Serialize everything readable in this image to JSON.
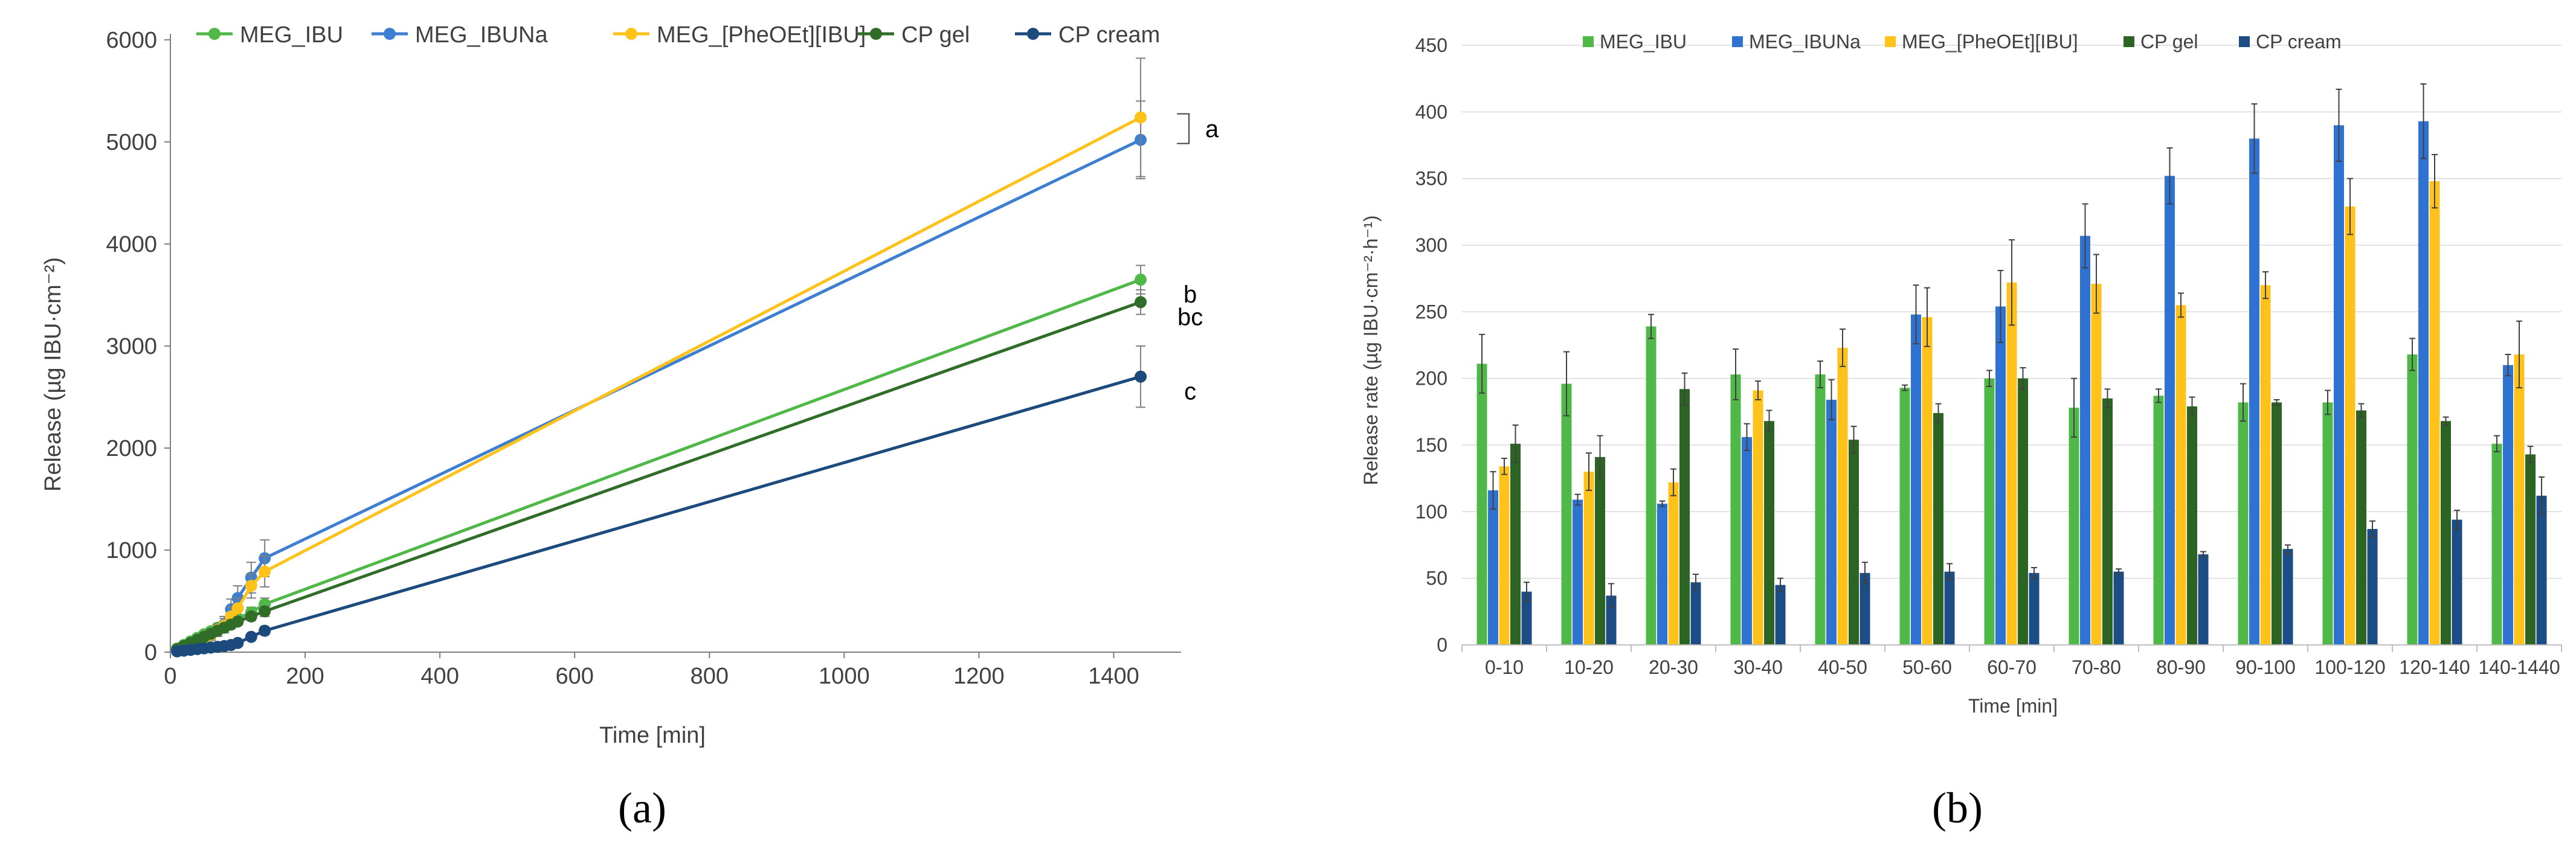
{
  "chart_data": [
    {
      "type": "line",
      "panel_label": "(a)",
      "xlabel": "Time [min]",
      "ylabel": "Release (µg IBU·cm⁻²)",
      "xlim": [
        0,
        1500
      ],
      "ylim": [
        0,
        6000
      ],
      "xticks": [
        "0",
        "200",
        "400",
        "600",
        "800",
        "1000",
        "1200",
        "1400"
      ],
      "yticks": [
        "0",
        "1000",
        "2000",
        "3000",
        "4000",
        "5000",
        "6000"
      ],
      "legend_position": "top",
      "x": [
        10,
        20,
        30,
        40,
        50,
        60,
        70,
        80,
        90,
        100,
        120,
        140,
        1440
      ],
      "series": [
        {
          "name": "MEG_IBU",
          "color": "#4fb848",
          "values": [
            35,
            70,
            105,
            140,
            175,
            205,
            240,
            270,
            300,
            330,
            390,
            470,
            3650
          ],
          "err": [
            10,
            15,
            20,
            25,
            30,
            30,
            35,
            35,
            40,
            40,
            50,
            60,
            140
          ]
        },
        {
          "name": "MEG_IBUNa",
          "color": "#3f7fd1",
          "values": [
            20,
            40,
            57,
            85,
            125,
            165,
            215,
            270,
            420,
            530,
            730,
            920,
            5020
          ],
          "err": [
            10,
            15,
            20,
            30,
            40,
            50,
            60,
            80,
            100,
            120,
            150,
            180,
            380
          ]
        },
        {
          "name": "MEG_[PheOEt][IBU]",
          "color": "#ffc21a",
          "values": [
            25,
            48,
            67,
            90,
            130,
            170,
            215,
            260,
            350,
            430,
            650,
            790,
            5240
          ],
          "err": [
            10,
            15,
            20,
            30,
            40,
            50,
            60,
            70,
            90,
            100,
            120,
            150,
            580
          ]
        },
        {
          "name": "CP gel",
          "color": "#2f6d29",
          "values": [
            30,
            60,
            90,
            120,
            150,
            180,
            210,
            240,
            270,
            300,
            350,
            400,
            3430
          ],
          "err": [
            10,
            15,
            20,
            20,
            25,
            25,
            30,
            30,
            35,
            35,
            40,
            50,
            120
          ]
        },
        {
          "name": "CP cream",
          "color": "#1c4a7c",
          "values": [
            8,
            15,
            22,
            30,
            38,
            45,
            52,
            60,
            70,
            90,
            150,
            210,
            2700
          ],
          "err": [
            5,
            5,
            8,
            10,
            10,
            12,
            15,
            15,
            20,
            20,
            30,
            40,
            300
          ]
        }
      ],
      "annotations": [
        {
          "text": "a",
          "series": [
            "MEG_IBUNa",
            "MEG_[PheOEt][IBU]"
          ]
        },
        {
          "text": "b",
          "series": [
            "MEG_IBU"
          ]
        },
        {
          "text": "bc",
          "series": [
            "CP gel"
          ]
        },
        {
          "text": "c",
          "series": [
            "CP cream"
          ]
        }
      ]
    },
    {
      "type": "bar",
      "panel_label": "(b)",
      "xlabel": "Time [min]",
      "ylabel": "Release rate (µg IBU·cm⁻²·h⁻¹)",
      "ylim": [
        0,
        450
      ],
      "yticks": [
        "0",
        "50",
        "100",
        "150",
        "200",
        "250",
        "300",
        "350",
        "400",
        "450"
      ],
      "legend_position": "top",
      "categories": [
        "0-10",
        "10-20",
        "20-30",
        "30-40",
        "40-50",
        "50-60",
        "60-70",
        "70-80",
        "80-90",
        "90-100",
        "100-120",
        "120-140",
        "140-1440"
      ],
      "series": [
        {
          "name": "MEG_IBU",
          "color": "#4fb848",
          "values": [
            211,
            196,
            239,
            203,
            203,
            193,
            200,
            178,
            187,
            182,
            182,
            218,
            151
          ],
          "err": [
            22,
            24,
            9,
            19,
            10,
            2,
            6,
            22,
            5,
            14,
            9,
            12,
            6
          ]
        },
        {
          "name": "MEG_IBUNa",
          "color": "#2f73d2",
          "values": [
            116,
            109,
            106,
            156,
            184,
            248,
            254,
            307,
            352,
            380,
            390,
            393,
            210
          ],
          "err": [
            14,
            4,
            2,
            10,
            15,
            22,
            27,
            24,
            21,
            26,
            27,
            28,
            8
          ]
        },
        {
          "name": "MEG_[PheOEt][IBU]",
          "color": "#ffc21a",
          "values": [
            134,
            130,
            122,
            191,
            223,
            246,
            272,
            271,
            255,
            270,
            329,
            348,
            218
          ],
          "err": [
            6,
            14,
            10,
            7,
            14,
            22,
            32,
            22,
            9,
            10,
            21,
            20,
            25
          ]
        },
        {
          "name": "CP gel",
          "color": "#2c6424",
          "values": [
            151,
            141,
            192,
            168,
            154,
            174,
            200,
            185,
            179,
            182,
            176,
            168,
            143
          ],
          "err": [
            14,
            16,
            12,
            8,
            10,
            7,
            8,
            7,
            7,
            2,
            5,
            3,
            6
          ]
        },
        {
          "name": "CP cream",
          "color": "#1c4d85",
          "values": [
            40,
            37,
            47,
            45,
            54,
            55,
            54,
            55,
            68,
            72,
            87,
            94,
            112
          ],
          "err": [
            7,
            9,
            6,
            5,
            8,
            6,
            4,
            2,
            2,
            3,
            6,
            7,
            14
          ]
        }
      ]
    }
  ]
}
